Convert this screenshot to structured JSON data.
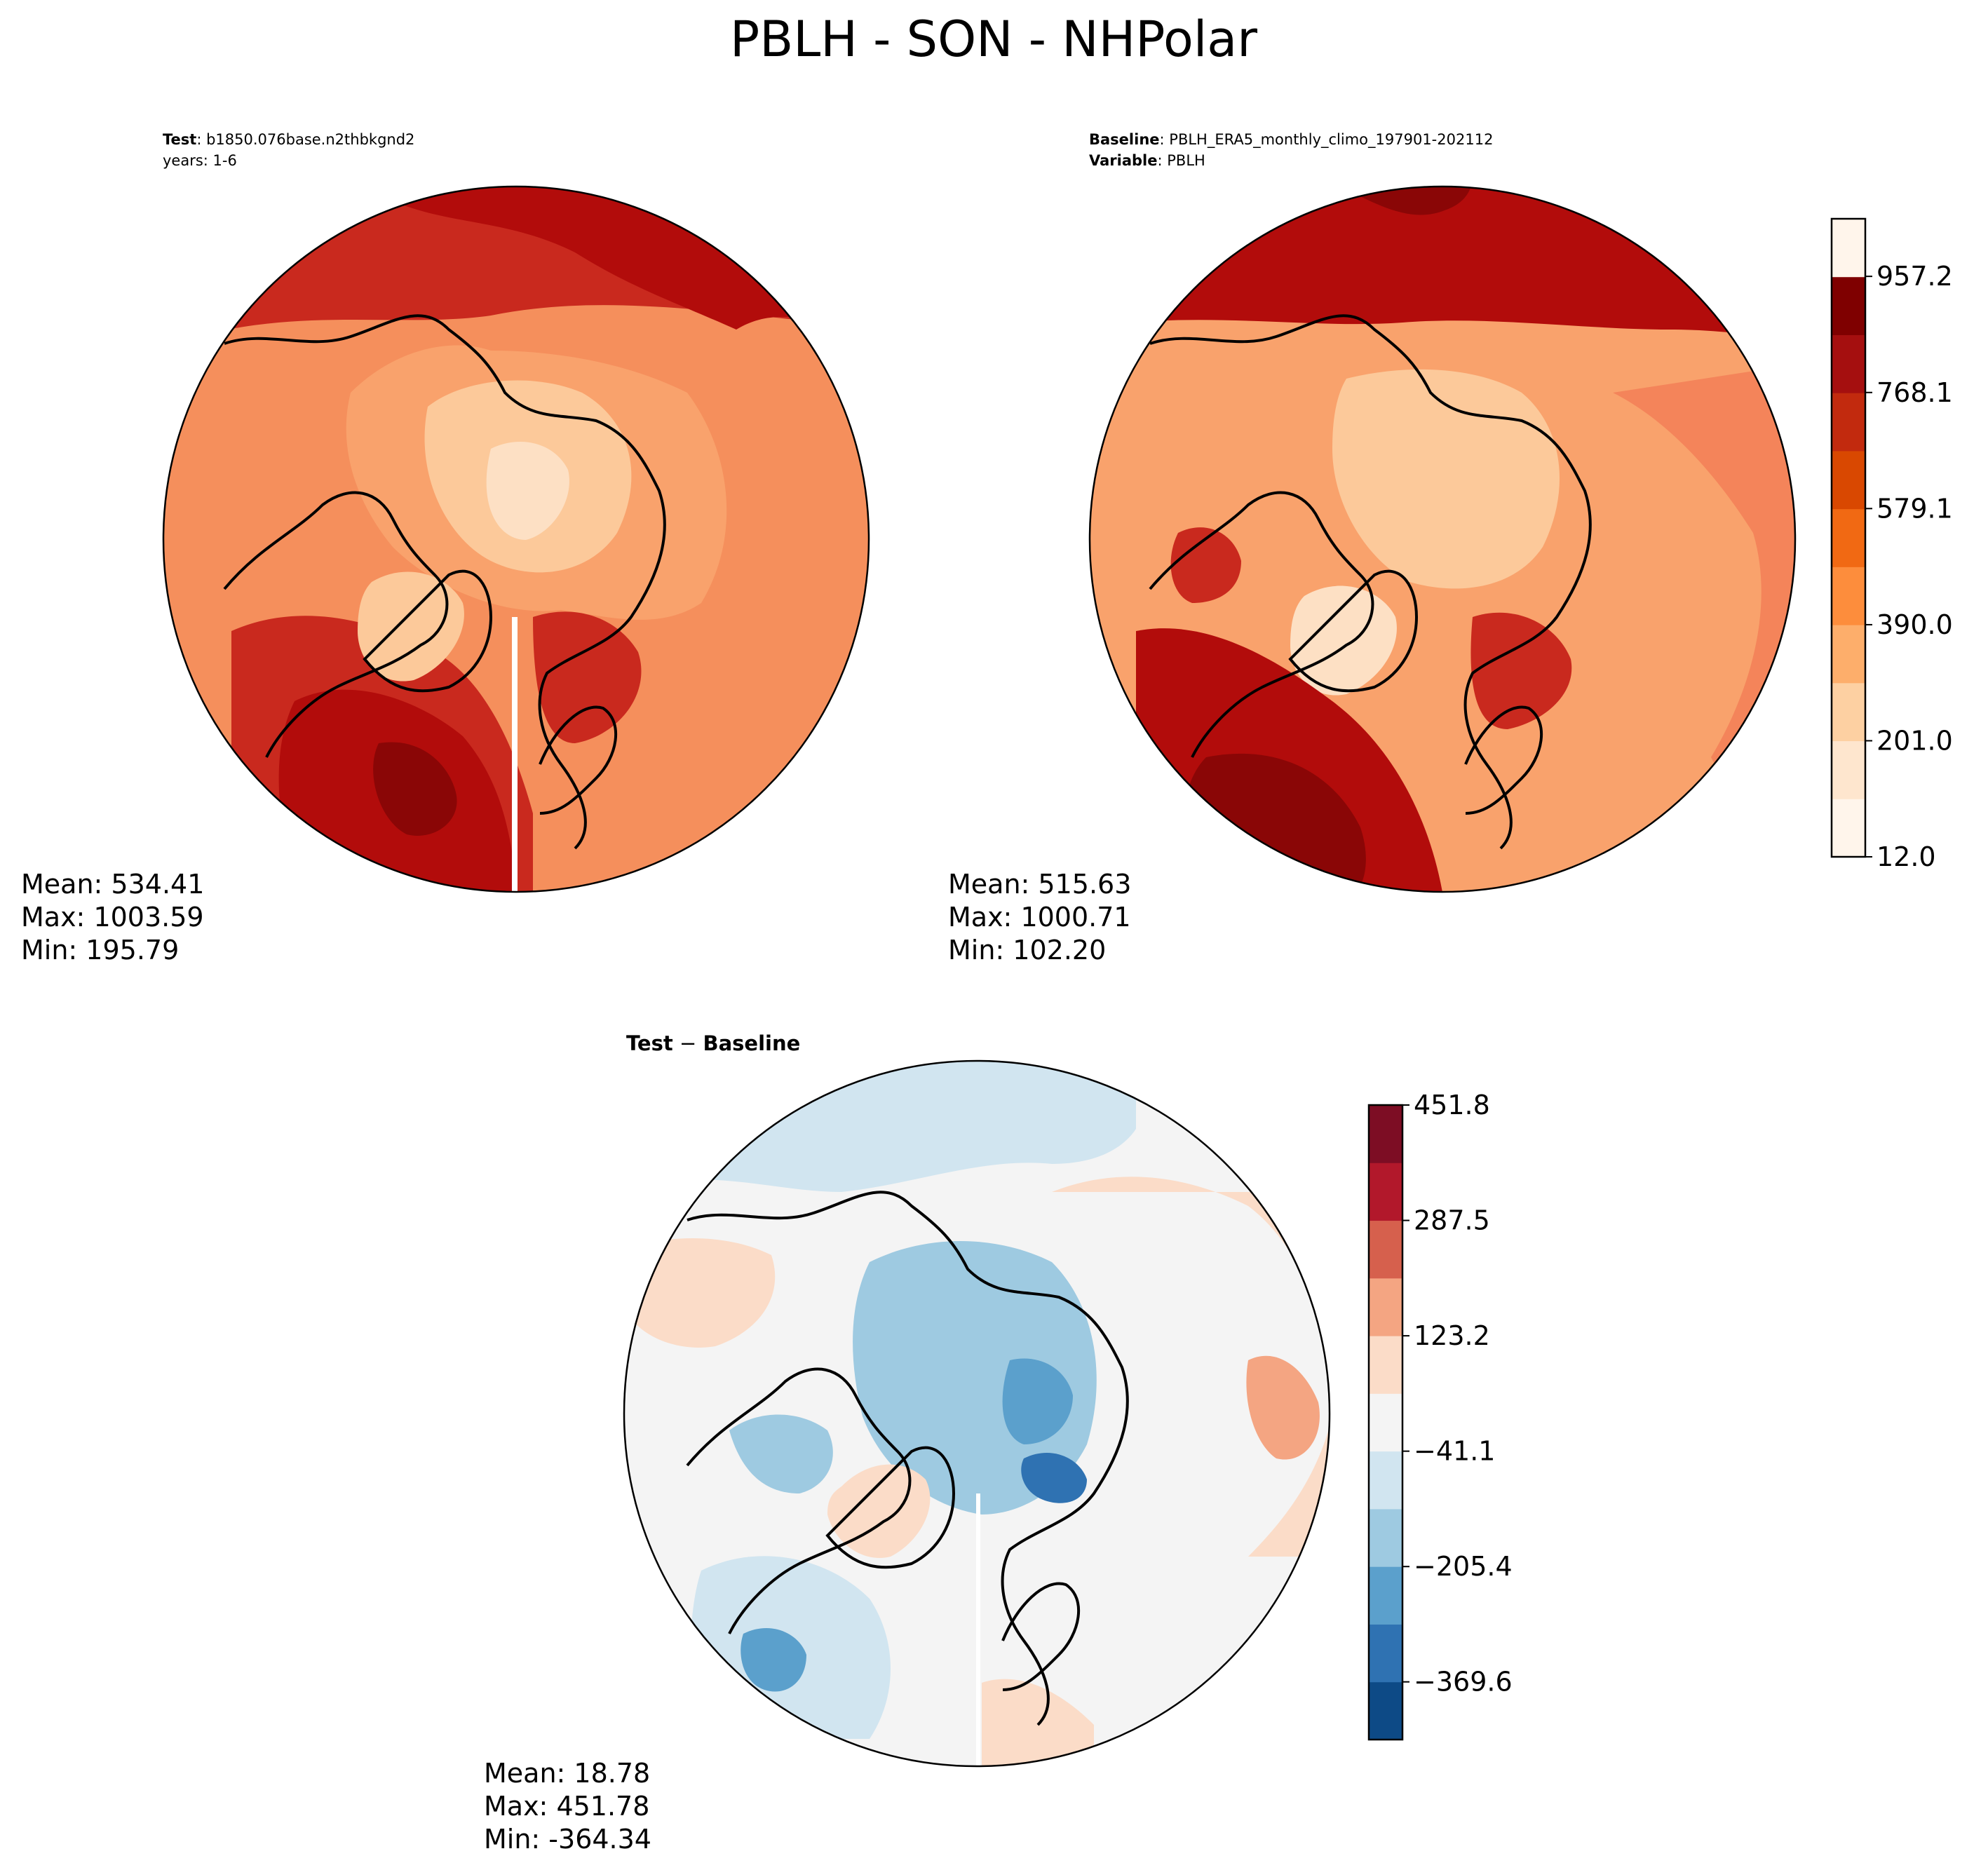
{
  "figure": {
    "title": "PBLH - SON - NHPolar"
  },
  "panels": {
    "test": {
      "label_bold": "Test",
      "label_sep": ": ",
      "label_value": "b1850.076base.n2thbkgnd2",
      "years_line": "years: 1-6",
      "stats": {
        "mean": "Mean: 534.41",
        "max": "Max: 1003.59",
        "min": "Min: 195.79"
      }
    },
    "baseline": {
      "label_bold": "Baseline",
      "label_sep": ": ",
      "label_value": "PBLH_ERA5_monthly_climo_197901-202112",
      "variable_bold": "Variable",
      "variable_value": "PBLH",
      "stats": {
        "mean": "Mean: 515.63",
        "max": "Max: 1000.71",
        "min": "Min: 102.20"
      }
    },
    "diff": {
      "title_left": "Test",
      "title_sep": " − ",
      "title_right": "Baseline",
      "stats": {
        "mean": "Mean: 18.78",
        "max": "Max: 451.78",
        "min": "Min: -364.34"
      }
    }
  },
  "colors": {
    "abs_levels": [
      "#fff5eb",
      "#fee6ce",
      "#fdd0a2",
      "#fdae6b",
      "#fd8d3c",
      "#f16913",
      "#d94801",
      "#c22a0e",
      "#a50f0f",
      "#7f0000"
    ],
    "abs_map": [
      "#fdf0e2",
      "#fde0c4",
      "#fcc99a",
      "#f9a26c",
      "#f4845a",
      "#e9694a",
      "#d9452f",
      "#c9291e",
      "#b20c0b",
      "#8a0606"
    ],
    "diff_map": [
      "#0d4a86",
      "#2f72b2",
      "#5ba0cc",
      "#9ecae1",
      "#d1e5f0",
      "#f4f4f4",
      "#fbdcc8",
      "#f4a582",
      "#d6604d",
      "#b2182b",
      "#7d0d24"
    ]
  },
  "chart_data": [
    {
      "type": "contour-map",
      "projection": "north-polar-stereographic",
      "region": "NHPolar",
      "panel": "test",
      "variable": "PBLH",
      "stats": {
        "mean": 534.41,
        "max": 1003.59,
        "min": 195.79
      }
    },
    {
      "type": "contour-map",
      "projection": "north-polar-stereographic",
      "region": "NHPolar",
      "panel": "baseline",
      "variable": "PBLH",
      "stats": {
        "mean": 515.63,
        "max": 1000.71,
        "min": 102.2
      },
      "colorbar": {
        "orientation": "vertical",
        "range": [
          12.0,
          1051.0
        ],
        "levels": 11,
        "tick_labels": [
          "12.0",
          "201.0",
          "390.0",
          "579.1",
          "768.1",
          "957.2"
        ],
        "tick_values": [
          12.0,
          201.0,
          390.0,
          579.1,
          768.1,
          957.2
        ]
      }
    },
    {
      "type": "contour-map",
      "projection": "north-polar-stereographic",
      "region": "NHPolar",
      "panel": "difference",
      "variable": "PBLH",
      "stats": {
        "mean": 18.78,
        "max": 451.78,
        "min": -364.34
      },
      "colorbar": {
        "orientation": "vertical",
        "range": [
          -451.8,
          451.8
        ],
        "levels": 11,
        "tick_labels": [
          "−369.6",
          "−205.4",
          "−41.1",
          "123.2",
          "287.5",
          "451.8"
        ],
        "tick_values": [
          -369.6,
          -205.4,
          -41.1,
          123.2,
          287.5,
          451.8
        ]
      }
    }
  ]
}
